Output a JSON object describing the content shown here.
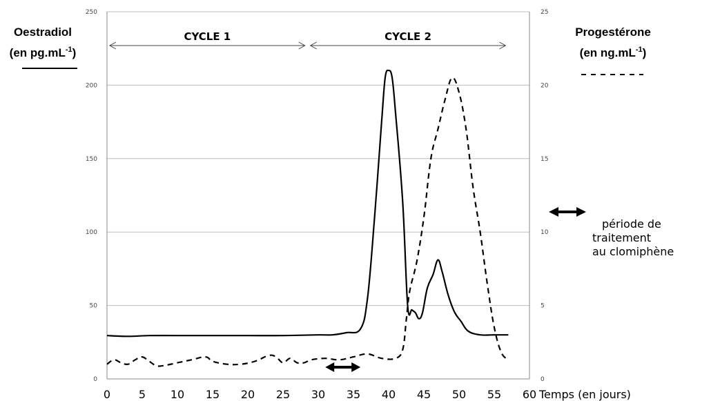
{
  "chart_data": {
    "type": "line",
    "title": "",
    "y_left_label": "Oestradiol",
    "y_left_unit": "(en pg.mL",
    "y_left_unit_sup": "-1",
    "y_left_unit_close": ")",
    "y_right_label": "Progestérone",
    "y_right_unit": "(en ng.mL",
    "y_right_unit_sup": "-1",
    "y_right_unit_close": ")",
    "xlabel": "Temps (en jours)",
    "xlim": [
      0,
      60
    ],
    "ylim_left": [
      0,
      250
    ],
    "ylim_right": [
      0,
      25
    ],
    "x_ticks": [
      "0",
      "5",
      "10",
      "15",
      "20",
      "25",
      "30",
      "35",
      "40",
      "45",
      "50",
      "55",
      "60"
    ],
    "y_left_ticks": [
      "0",
      "50",
      "100",
      "150",
      "200",
      "250"
    ],
    "y_right_ticks": [
      "0",
      "5",
      "10",
      "15",
      "20",
      "25"
    ],
    "grid": true,
    "cycles": [
      {
        "label": "CYCLE 1",
        "start": 0,
        "end": 28.5
      },
      {
        "label": "CYCLE 2",
        "start": 28.5,
        "end": 57
      }
    ],
    "treatment_period": {
      "start": 31,
      "end": 36
    },
    "legend": [
      "période de",
      "traitement",
      "au clomiphène"
    ],
    "series": [
      {
        "axis": "left",
        "style": "solid",
        "points": [
          [
            0,
            29.5
          ],
          [
            3,
            29
          ],
          [
            6,
            29.5
          ],
          [
            10,
            29.5
          ],
          [
            15,
            29.5
          ],
          [
            20,
            29.5
          ],
          [
            25,
            29.5
          ],
          [
            30,
            30
          ],
          [
            32,
            30
          ],
          [
            34,
            31.5
          ],
          [
            36,
            34
          ],
          [
            37,
            55
          ],
          [
            38,
            110
          ],
          [
            39,
            175
          ],
          [
            39.5,
            205
          ],
          [
            40,
            210
          ],
          [
            40.5,
            205
          ],
          [
            41,
            180
          ],
          [
            42,
            120
          ],
          [
            42.7,
            50
          ],
          [
            43.3,
            47
          ],
          [
            43.8,
            45
          ],
          [
            44.3,
            41
          ],
          [
            44.8,
            45
          ],
          [
            45.5,
            62
          ],
          [
            46.3,
            71
          ],
          [
            47,
            81
          ],
          [
            47.6,
            73
          ],
          [
            48.4,
            58
          ],
          [
            49.3,
            46
          ],
          [
            50.3,
            39
          ],
          [
            51.3,
            32.5
          ],
          [
            53,
            30
          ],
          [
            55,
            30
          ],
          [
            57,
            30
          ]
        ]
      },
      {
        "axis": "right",
        "style": "dashed",
        "points": [
          [
            0,
            1
          ],
          [
            1,
            1.3
          ],
          [
            2,
            1.1
          ],
          [
            3,
            1
          ],
          [
            4,
            1.3
          ],
          [
            5,
            1.5
          ],
          [
            6,
            1.2
          ],
          [
            7,
            0.9
          ],
          [
            8,
            0.9
          ],
          [
            10,
            1.1
          ],
          [
            12,
            1.3
          ],
          [
            14,
            1.5
          ],
          [
            15,
            1.2
          ],
          [
            17,
            1
          ],
          [
            19,
            1
          ],
          [
            21,
            1.2
          ],
          [
            23,
            1.6
          ],
          [
            24,
            1.5
          ],
          [
            25,
            1.1
          ],
          [
            26,
            1.4
          ],
          [
            27,
            1.1
          ],
          [
            28,
            1.1
          ],
          [
            29,
            1.3
          ],
          [
            31,
            1.4
          ],
          [
            33,
            1.3
          ],
          [
            35,
            1.5
          ],
          [
            37,
            1.7
          ],
          [
            39,
            1.4
          ],
          [
            41,
            1.4
          ],
          [
            42,
            2
          ],
          [
            42.5,
            4
          ],
          [
            43,
            6
          ],
          [
            44,
            8
          ],
          [
            45,
            11
          ],
          [
            46,
            15
          ],
          [
            47,
            17
          ],
          [
            48,
            19
          ],
          [
            49,
            20.5
          ],
          [
            50,
            19.5
          ],
          [
            51,
            17
          ],
          [
            52,
            13
          ],
          [
            53,
            10
          ],
          [
            54,
            6.5
          ],
          [
            55,
            3.5
          ],
          [
            56,
            1.8
          ],
          [
            57,
            1.3
          ]
        ]
      }
    ]
  }
}
